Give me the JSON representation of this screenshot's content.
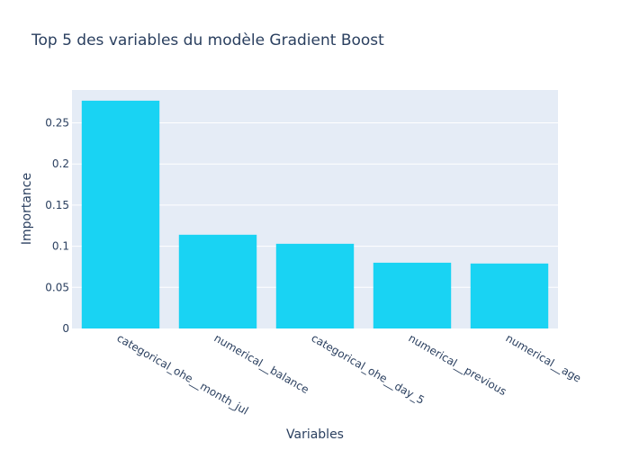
{
  "chart_data": {
    "type": "bar",
    "title": "Top 5 des variables du modèle Gradient Boost",
    "xlabel": "Variables",
    "ylabel": "Importance",
    "categories": [
      "categorical_ohe__month_jul",
      "numerical__balance",
      "categorical_ohe__day_5",
      "numerical__previous",
      "numerical__age"
    ],
    "values": [
      0.277,
      0.114,
      0.103,
      0.08,
      0.079
    ],
    "ylim": [
      0,
      0.29
    ],
    "yticks": [
      0,
      0.05,
      0.1,
      0.15,
      0.2,
      0.25
    ],
    "ytick_labels": [
      "0",
      "0.05",
      "0.1",
      "0.15",
      "0.2",
      "0.25"
    ],
    "grid": true,
    "legend": "none",
    "bar_color": "#19d3f3",
    "plot_bg": "#e5ecf6",
    "text_color": "#2a3f5f"
  }
}
